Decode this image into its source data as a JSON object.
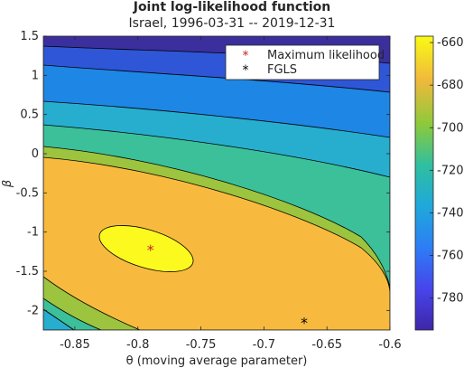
{
  "chart_data": {
    "type": "contour",
    "title": "Joint log-likelihood function",
    "subtitle": "Israel, 1996-03-31 -- 2019-12-31",
    "xlabel": "θ (moving average parameter)",
    "ylabel": "β",
    "xlim": [
      -0.875,
      -0.6
    ],
    "ylim": [
      -2.25,
      1.5
    ],
    "x_ticks": [
      "-0.85",
      "-0.8",
      "-0.75",
      "-0.7",
      "-0.65",
      "-0.6"
    ],
    "x_tick_values": [
      -0.85,
      -0.8,
      -0.75,
      -0.7,
      -0.65,
      -0.6
    ],
    "y_ticks": [
      "1.5",
      "1",
      "0.5",
      "0",
      "-0.5",
      "-1",
      "-1.5",
      "-2"
    ],
    "y_tick_values": [
      1.5,
      1,
      0.5,
      0,
      -0.5,
      -1,
      -1.5,
      -2
    ],
    "colorbar": {
      "ticks": [
        "-660",
        "-680",
        "-700",
        "-720",
        "-740",
        "-760",
        "-780"
      ],
      "tick_values": [
        -660,
        -680,
        -700,
        -720,
        -740,
        -760,
        -780
      ],
      "range": [
        -795,
        -657
      ]
    },
    "contour_fills": [
      "#3a2f9c",
      "#2f56d6",
      "#1e86e4",
      "#27aecf",
      "#3bc09a",
      "#9cc43e",
      "#f8ba3e",
      "#fbf91e"
    ],
    "points": [
      {
        "name": "Maximum likelihood",
        "x": -0.79,
        "y": -1.2,
        "marker": "*",
        "color": "#c0262a"
      },
      {
        "name": "FGLS",
        "x": -0.668,
        "y": -2.13,
        "marker": "*",
        "color": "#000000"
      }
    ],
    "legend": {
      "position": "top-right",
      "entries": [
        "Maximum likelihood",
        "FGLS"
      ]
    },
    "grid": false
  }
}
